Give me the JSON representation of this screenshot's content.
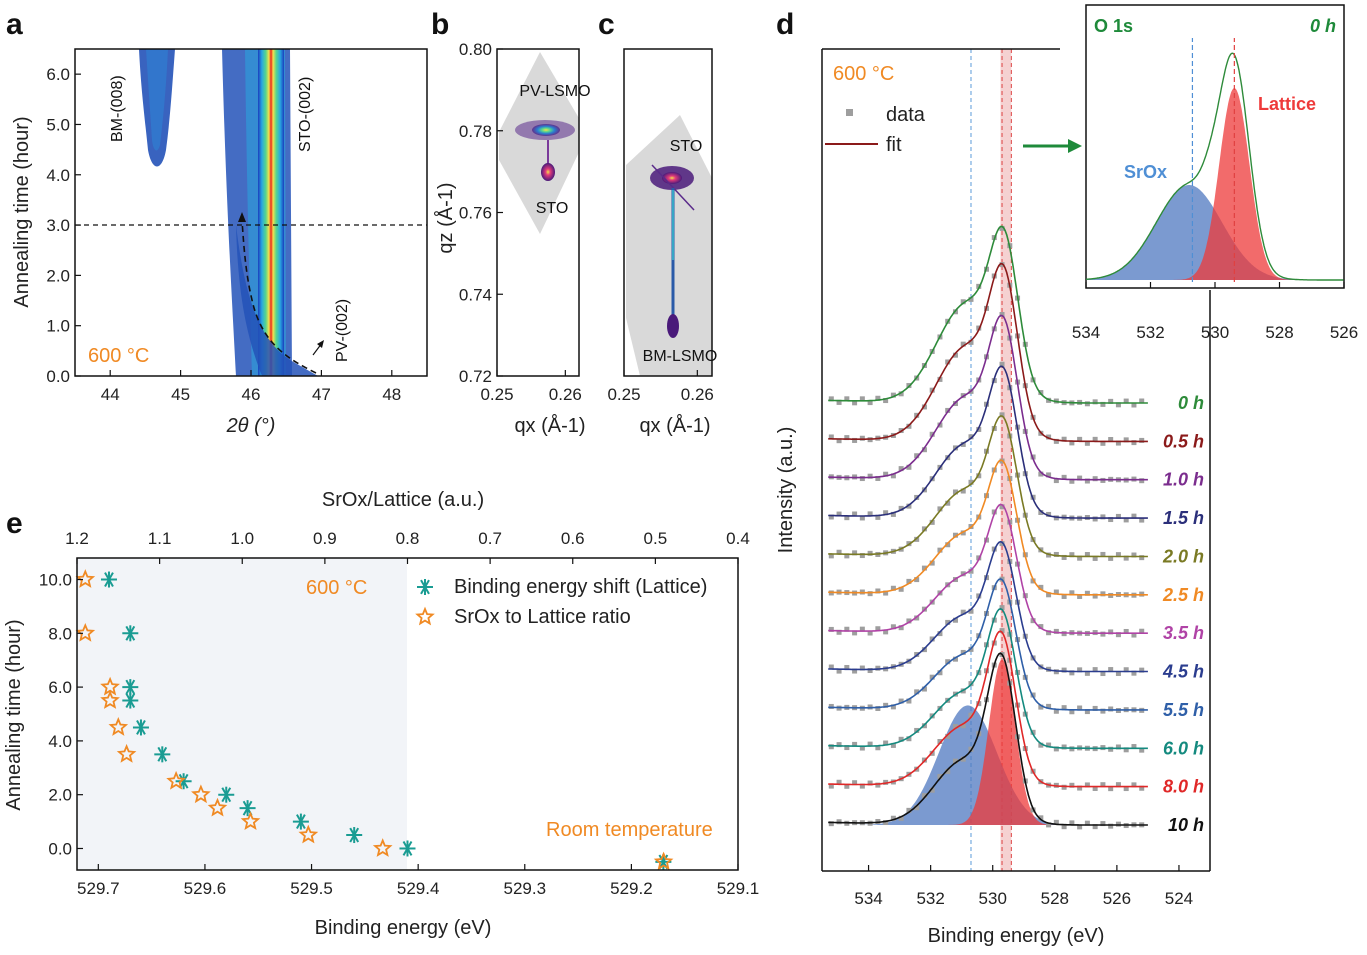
{
  "panels": {
    "a": "a",
    "b": "b",
    "c": "c",
    "d": "d",
    "e": "e"
  },
  "colors": {
    "orange": "#f08a24",
    "teal": "#1a9c93",
    "sro_blue": "#4f6fb5",
    "lattice_red": "#ee3a3a",
    "gray_region": "#d9d9d9"
  },
  "chart_data": [
    {
      "panel": "a",
      "type": "heatmap",
      "xlabel": "2θ (°)",
      "ylabel": "Annealing time (hour)",
      "x_ticks": [
        "44",
        "45",
        "46",
        "47",
        "48"
      ],
      "y_ticks": [
        "0.0",
        "1.0",
        "2.0",
        "3.0",
        "4.0",
        "5.0",
        "6.0"
      ],
      "xlim": [
        43.5,
        48.5
      ],
      "ylim": [
        0,
        6.5
      ],
      "annotations": [
        "BM-(008)",
        "STO-(002)",
        "PV-(002)",
        "600 °C"
      ],
      "dashed_line_y": 3.0,
      "peaks": [
        {
          "name": "STO-(002)",
          "x": 46.3,
          "y_range": [
            0,
            6.5
          ]
        },
        {
          "name": "BM-(008)",
          "x": 44.6,
          "y_range": [
            4.5,
            6.5
          ]
        },
        {
          "name": "PV-(002)",
          "x_start": 47.0,
          "x_end": 46.0,
          "y_range": [
            0,
            3.5
          ]
        }
      ]
    },
    {
      "panel": "b",
      "type": "heatmap",
      "xlabel": "qx (Å-1)",
      "ylabel": "qz (Å-1)",
      "x_ticks": [
        "0.25",
        "0.26"
      ],
      "y_ticks": [
        "0.72",
        "0.74",
        "0.76",
        "0.78",
        "0.80"
      ],
      "xlim": [
        0.25,
        0.262
      ],
      "ylim": [
        0.72,
        0.8
      ],
      "annotations": [
        "PV-LSMO",
        "STO"
      ],
      "peaks": [
        {
          "name": "PV-LSMO",
          "qx": 0.2565,
          "qz": 0.7795
        },
        {
          "name": "STO",
          "qx": 0.2565,
          "qz": 0.77
        }
      ]
    },
    {
      "panel": "c",
      "type": "heatmap",
      "xlabel": "qx (Å-1)",
      "x_ticks": [
        "0.25",
        "0.26"
      ],
      "xlim": [
        0.25,
        0.262
      ],
      "ylim": [
        0.72,
        0.8
      ],
      "annotations": [
        "STO",
        "BM-LSMO"
      ],
      "peaks": [
        {
          "name": "STO",
          "qx": 0.2565,
          "qz": 0.7685
        },
        {
          "name": "BM-LSMO",
          "qx": 0.2565,
          "qz": 0.733
        }
      ]
    },
    {
      "panel": "d",
      "type": "line",
      "xlabel": "Binding energy (eV)",
      "ylabel": "Intensity (a.u.)",
      "x_ticks": [
        "534",
        "532",
        "530",
        "528",
        "526",
        "524"
      ],
      "xlim": [
        535.5,
        523
      ],
      "reversed_x": true,
      "temperature": "600 °C",
      "legend": {
        "data": "data",
        "fit": "fit"
      },
      "series": [
        {
          "name": "0 h",
          "color": "#2e8b3a",
          "peak": 529.62
        },
        {
          "name": "0.5 h",
          "color": "#8b1a1a",
          "peak": 529.63
        },
        {
          "name": "1.0 h",
          "color": "#7b2d8e",
          "peak": 529.64
        },
        {
          "name": "1.5 h",
          "color": "#2b2f7a",
          "peak": 529.64
        },
        {
          "name": "2.0 h",
          "color": "#7a7a24",
          "peak": 529.65
        },
        {
          "name": "2.5 h",
          "color": "#f08a24",
          "peak": 529.66
        },
        {
          "name": "3.5 h",
          "color": "#b043a6",
          "peak": 529.67
        },
        {
          "name": "4.5 h",
          "color": "#2b3d8f",
          "peak": 529.68
        },
        {
          "name": "5.5 h",
          "color": "#2f5fa8",
          "peak": 529.69
        },
        {
          "name": "6.0 h",
          "color": "#148a7f",
          "peak": 529.69
        },
        {
          "name": "8.0 h",
          "color": "#e02828",
          "peak": 529.7
        },
        {
          "name": "10 h",
          "color": "#111111",
          "peak": 529.7
        }
      ],
      "components_10h": {
        "SrOx": {
          "center": 530.8,
          "fwhm": 2.2
        },
        "Lattice": {
          "center": 529.7,
          "fwhm": 1.0
        }
      },
      "vlines": [
        530.7,
        529.7,
        529.4
      ]
    },
    {
      "panel": "d-inset",
      "type": "line",
      "title_left": "O 1s",
      "title_right": "0 h",
      "x_ticks": [
        "534",
        "532",
        "530",
        "528",
        "526"
      ],
      "xlim": [
        534,
        526
      ],
      "labels": {
        "SrOx": "SrOx",
        "Lattice": "Lattice"
      },
      "components": {
        "SrOx": {
          "center": 530.8,
          "fwhm": 2.4
        },
        "Lattice": {
          "center": 529.4,
          "fwhm": 1.1
        }
      },
      "vlines": [
        530.7,
        529.4
      ]
    },
    {
      "panel": "e",
      "type": "scatter",
      "xlabel": "Binding energy (eV)",
      "ylabel": "Annealing time (hour)",
      "top_xlabel": "SrOx/Lattice (a.u.)",
      "x_ticks": [
        "529.7",
        "529.6",
        "529.5",
        "529.4",
        "529.3",
        "529.2",
        "529.1"
      ],
      "top_x_ticks": [
        "1.2",
        "1.1",
        "1.0",
        "0.9",
        "0.8",
        "0.7",
        "0.6",
        "0.5",
        "0.4"
      ],
      "y_ticks": [
        "0.0",
        "2.0",
        "4.0",
        "6.0",
        "8.0",
        "10.0"
      ],
      "xlim": [
        529.72,
        529.1
      ],
      "top_xlim": [
        1.2,
        0.4
      ],
      "ylim": [
        -0.8,
        10.8
      ],
      "annotations": [
        "600 °C",
        "Room temperature"
      ],
      "series": [
        {
          "name": "Binding energy shift (Lattice)",
          "color": "#1a9c93",
          "marker": "asterisk",
          "x": [
            529.69,
            529.67,
            529.67,
            529.67,
            529.66,
            529.64,
            529.62,
            529.58,
            529.56,
            529.51,
            529.46,
            529.41,
            529.17
          ],
          "y": [
            10.0,
            8.0,
            6.0,
            5.5,
            4.5,
            3.5,
            2.5,
            2.0,
            1.5,
            1.0,
            0.5,
            0.0,
            -0.5
          ]
        },
        {
          "name": "SrOx to Lattice ratio",
          "color": "#f08a24",
          "marker": "star",
          "ratio": [
            1.19,
            1.19,
            1.16,
            1.16,
            1.15,
            1.14,
            1.08,
            1.05,
            1.03,
            0.99,
            0.92,
            0.83,
            0.49
          ],
          "y": [
            10.0,
            8.0,
            6.0,
            5.5,
            4.5,
            3.5,
            2.5,
            2.0,
            1.5,
            1.0,
            0.5,
            0.0,
            -0.5
          ]
        }
      ]
    }
  ]
}
